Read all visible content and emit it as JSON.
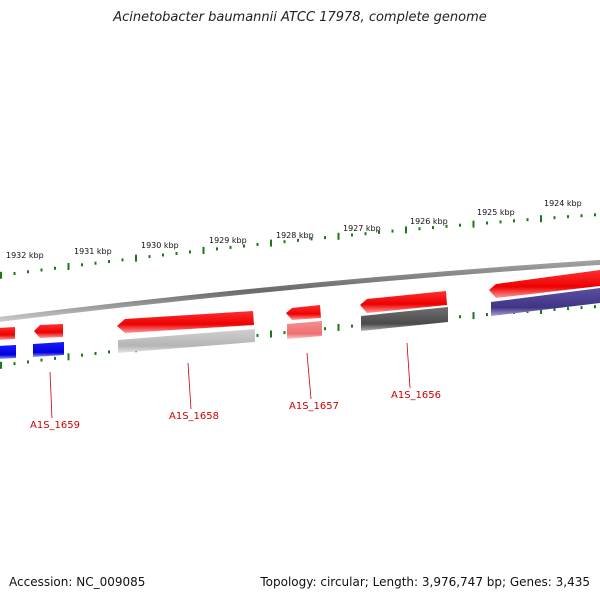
{
  "title": "Acinetobacter baumannii ATCC 17978, complete genome",
  "footer": {
    "accession": "Accession: NC_009085",
    "summary": "Topology: circular; Length: 3,976,747 bp; Genes: 3,435"
  },
  "scale_labels": [
    "1932 kbp",
    "1931 kbp",
    "1930 kbp",
    "1929 kbp",
    "1928 kbp",
    "1927 kbp",
    "1926 kbp",
    "1925 kbp",
    "1924 kbp"
  ],
  "gene_labels": [
    "A1S_1659",
    "A1S_1658",
    "A1S_1657",
    "A1S_1656"
  ],
  "colors": {
    "cds": "#ff0000",
    "gene_track_blue": "#0000ee",
    "gene_track_purple": "#4a3f8f",
    "gene_track_gray": "#555555",
    "gene_track_light_gray": "#bbbbbb",
    "gene_track_pink": "#f08080",
    "backbone": "#888888",
    "ticks": "#1a7a1a",
    "label": "#cc0000"
  }
}
